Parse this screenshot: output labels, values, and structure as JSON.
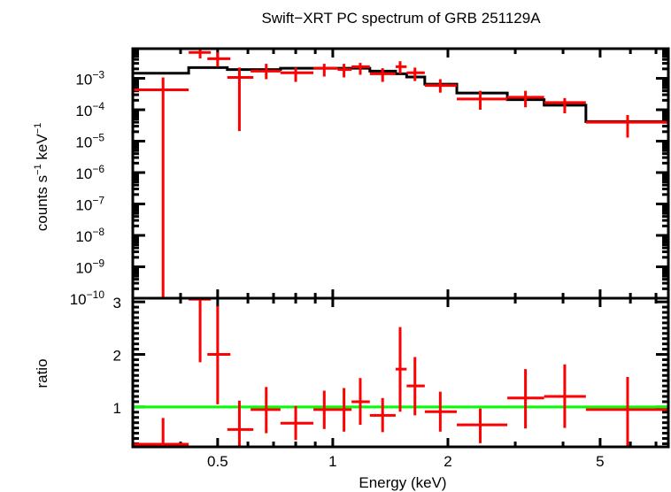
{
  "chart_data": [
    {
      "type": "scatter",
      "panel": "spectrum",
      "title": "Swift−XRT PC spectrum of GRB 251129A",
      "xlabel": "Energy (keV)",
      "ylabel_parts": [
        "counts s",
        "−1",
        " keV",
        "−1"
      ],
      "xscale": "log",
      "yscale": "log",
      "xlim": [
        0.3,
        7.54
      ],
      "ylim": [
        1e-10,
        0.0088
      ],
      "y_ticks": [
        {
          "value": 0.001,
          "base": "10",
          "exp": "−3"
        },
        {
          "value": 0.0001,
          "base": "10",
          "exp": "−4"
        },
        {
          "value": 1e-05,
          "base": "10",
          "exp": "−5"
        },
        {
          "value": 1e-06,
          "base": "10",
          "exp": "−6"
        },
        {
          "value": 1e-07,
          "base": "10",
          "exp": "−7"
        },
        {
          "value": 1e-08,
          "base": "10",
          "exp": "−8"
        },
        {
          "value": 1e-09,
          "base": "10",
          "exp": "−9"
        },
        {
          "value": 1e-10,
          "base": "10",
          "exp": "−10"
        }
      ],
      "series": [
        {
          "name": "data",
          "color": "#ff0000",
          "points": [
            {
              "x": 0.36,
              "xlo": 0.3,
              "xhi": 0.42,
              "y": 0.00043,
              "ylo": 1e-11,
              "yhi": 0.00107
            },
            {
              "x": 0.45,
              "xlo": 0.42,
              "xhi": 0.48,
              "y": 0.0067,
              "ylo": 0.0043,
              "yhi": 0.0094
            },
            {
              "x": 0.5,
              "xlo": 0.47,
              "xhi": 0.54,
              "y": 0.0042,
              "ylo": 0.00235,
              "yhi": 0.0067
            },
            {
              "x": 0.57,
              "xlo": 0.53,
              "xhi": 0.62,
              "y": 0.00107,
              "ylo": 2.1e-05,
              "yhi": 0.0022
            },
            {
              "x": 0.67,
              "xlo": 0.61,
              "xhi": 0.73,
              "y": 0.0017,
              "ylo": 0.00094,
              "yhi": 0.0029
            },
            {
              "x": 0.8,
              "xlo": 0.73,
              "xhi": 0.89,
              "y": 0.0015,
              "ylo": 0.00077,
              "yhi": 0.0022
            },
            {
              "x": 0.95,
              "xlo": 0.89,
              "xhi": 1.03,
              "y": 0.0021,
              "ylo": 0.00114,
              "yhi": 0.0029
            },
            {
              "x": 1.07,
              "xlo": 1.03,
              "xhi": 1.12,
              "y": 0.0019,
              "ylo": 0.00107,
              "yhi": 0.0029
            },
            {
              "x": 1.18,
              "xlo": 1.12,
              "xhi": 1.25,
              "y": 0.00235,
              "ylo": 0.0013,
              "yhi": 0.0031
            },
            {
              "x": 1.35,
              "xlo": 1.25,
              "xhi": 1.46,
              "y": 0.0014,
              "ylo": 0.00077,
              "yhi": 0.0021
            },
            {
              "x": 1.5,
              "xlo": 1.46,
              "xhi": 1.56,
              "y": 0.00235,
              "ylo": 0.0014,
              "yhi": 0.0035
            },
            {
              "x": 1.64,
              "xlo": 1.56,
              "xhi": 1.74,
              "y": 0.0015,
              "ylo": 0.00082,
              "yhi": 0.0022
            },
            {
              "x": 1.91,
              "xlo": 1.74,
              "xhi": 2.11,
              "y": 0.00059,
              "ylo": 0.00035,
              "yhi": 0.00094
            },
            {
              "x": 2.43,
              "xlo": 2.11,
              "xhi": 2.86,
              "y": 0.00022,
              "ylo": 0.0001,
              "yhi": 0.0004
            },
            {
              "x": 3.19,
              "xlo": 2.86,
              "xhi": 3.57,
              "y": 0.00025,
              "ylo": 0.00012,
              "yhi": 0.0004
            },
            {
              "x": 4.04,
              "xlo": 3.57,
              "xhi": 4.59,
              "y": 0.00017,
              "ylo": 7.7e-05,
              "yhi": 0.000235
            },
            {
              "x": 5.9,
              "xlo": 4.59,
              "xhi": 7.54,
              "y": 4e-05,
              "ylo": 1.3e-05,
              "yhi": 6.8e-05
            }
          ]
        },
        {
          "name": "model",
          "color": "#000000",
          "steps": [
            {
              "xlo": 0.3,
              "xhi": 0.42,
              "y": 0.00145
            },
            {
              "xlo": 0.42,
              "xhi": 0.53,
              "y": 0.0022
            },
            {
              "xlo": 0.53,
              "xhi": 0.73,
              "y": 0.0019
            },
            {
              "xlo": 0.73,
              "xhi": 1.25,
              "y": 0.0021
            },
            {
              "xlo": 1.25,
              "xhi": 1.46,
              "y": 0.0017
            },
            {
              "xlo": 1.46,
              "xhi": 1.56,
              "y": 0.0014
            },
            {
              "xlo": 1.56,
              "xhi": 1.74,
              "y": 0.0011
            },
            {
              "xlo": 1.74,
              "xhi": 2.11,
              "y": 0.00065
            },
            {
              "xlo": 2.11,
              "xhi": 2.86,
              "y": 0.00034
            },
            {
              "xlo": 2.86,
              "xhi": 3.57,
              "y": 0.00021
            },
            {
              "xlo": 3.57,
              "xhi": 4.59,
              "y": 0.00014
            },
            {
              "xlo": 4.59,
              "xhi": 7.54,
              "y": 4.2e-05
            }
          ]
        }
      ]
    },
    {
      "type": "scatter",
      "panel": "ratio",
      "xlabel": "Energy (keV)",
      "ylabel": "ratio",
      "xscale": "log",
      "yscale": "linear",
      "xlim": [
        0.3,
        7.54
      ],
      "ylim": [
        0.24,
        3.07
      ],
      "x_ticks": [
        {
          "value": 0.5,
          "label": "0.5"
        },
        {
          "value": 1,
          "label": "1"
        },
        {
          "value": 2,
          "label": "2"
        },
        {
          "value": 5,
          "label": "5"
        }
      ],
      "y_ticks": [
        {
          "value": 1,
          "label": "1"
        },
        {
          "value": 2,
          "label": "2"
        },
        {
          "value": 3,
          "label": "3"
        }
      ],
      "reference_line": {
        "y": 1,
        "color": "#00ff00"
      },
      "series": [
        {
          "name": "ratio",
          "color": "#ff0000",
          "points": [
            {
              "x": 0.36,
              "xlo": 0.3,
              "xhi": 0.42,
              "y": 0.29,
              "ylo": 0.2,
              "yhi": 0.79
            },
            {
              "x": 0.45,
              "xlo": 0.42,
              "xhi": 0.48,
              "y": 3.05,
              "ylo": 1.85,
              "yhi": 3.07
            },
            {
              "x": 0.5,
              "xlo": 0.47,
              "xhi": 0.54,
              "y": 2.0,
              "ylo": 1.05,
              "yhi": 2.92
            },
            {
              "x": 0.57,
              "xlo": 0.53,
              "xhi": 0.62,
              "y": 0.57,
              "ylo": 0.2,
              "yhi": 1.12
            },
            {
              "x": 0.67,
              "xlo": 0.61,
              "xhi": 0.73,
              "y": 0.95,
              "ylo": 0.5,
              "yhi": 1.38
            },
            {
              "x": 0.8,
              "xlo": 0.73,
              "xhi": 0.89,
              "y": 0.69,
              "ylo": 0.37,
              "yhi": 1.02
            },
            {
              "x": 0.95,
              "xlo": 0.89,
              "xhi": 1.03,
              "y": 0.95,
              "ylo": 0.58,
              "yhi": 1.31
            },
            {
              "x": 1.07,
              "xlo": 1.03,
              "xhi": 1.12,
              "y": 0.95,
              "ylo": 0.53,
              "yhi": 1.36
            },
            {
              "x": 1.18,
              "xlo": 1.12,
              "xhi": 1.25,
              "y": 1.1,
              "ylo": 0.66,
              "yhi": 1.55
            },
            {
              "x": 1.35,
              "xlo": 1.25,
              "xhi": 1.46,
              "y": 0.84,
              "ylo": 0.52,
              "yhi": 1.17
            },
            {
              "x": 1.5,
              "xlo": 1.46,
              "xhi": 1.56,
              "y": 1.72,
              "ylo": 0.91,
              "yhi": 2.52
            },
            {
              "x": 1.64,
              "xlo": 1.56,
              "xhi": 1.74,
              "y": 1.4,
              "ylo": 0.84,
              "yhi": 1.95
            },
            {
              "x": 1.91,
              "xlo": 1.74,
              "xhi": 2.11,
              "y": 0.91,
              "ylo": 0.53,
              "yhi": 1.29
            },
            {
              "x": 2.43,
              "xlo": 2.11,
              "xhi": 2.86,
              "y": 0.66,
              "ylo": 0.31,
              "yhi": 0.97
            },
            {
              "x": 3.19,
              "xlo": 2.86,
              "xhi": 3.57,
              "y": 1.17,
              "ylo": 0.59,
              "yhi": 1.72
            },
            {
              "x": 4.04,
              "xlo": 3.57,
              "xhi": 4.59,
              "y": 1.2,
              "ylo": 0.6,
              "yhi": 1.81
            },
            {
              "x": 5.9,
              "xlo": 4.59,
              "xhi": 7.54,
              "y": 0.95,
              "ylo": 0.26,
              "yhi": 1.57
            }
          ]
        }
      ]
    }
  ]
}
